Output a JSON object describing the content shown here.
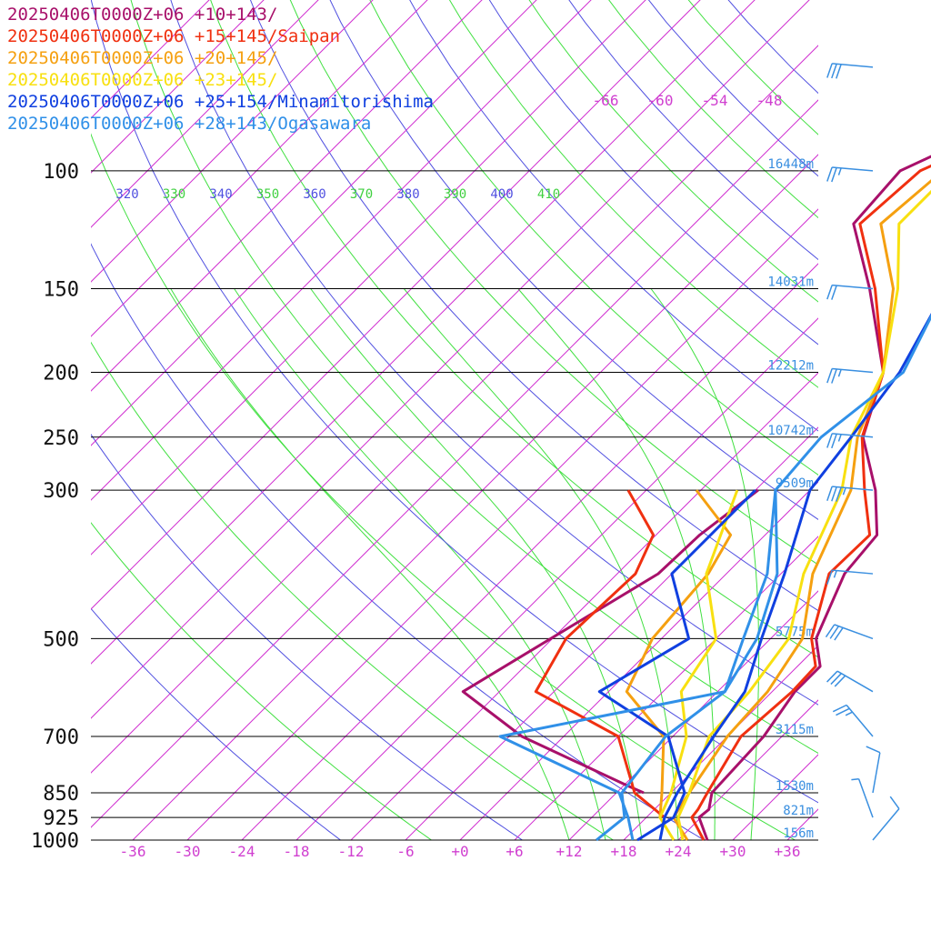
{
  "chart_data": {
    "type": "line",
    "title": "",
    "xlabel": "",
    "ylabel": "",
    "xlim": [
      -40,
      40
    ],
    "pressure_levels": [
      100,
      150,
      200,
      250,
      300,
      500,
      700,
      850,
      925,
      1000
    ],
    "pressure_labels": [
      "100",
      "150",
      "200",
      "250",
      "300",
      "500",
      "700",
      "850",
      "925",
      "1000"
    ],
    "temperature_ticks": [
      -36,
      -30,
      -24,
      -18,
      -12,
      -6,
      0,
      6,
      12,
      18,
      24,
      30,
      36
    ],
    "temperature_tick_labels": [
      "-36",
      "-30",
      "-24",
      "-18",
      "-12",
      "-6",
      "+0",
      "+6",
      "+12",
      "+18",
      "+24",
      "+30",
      "+36"
    ],
    "upper_temperature_labels": [
      "-66",
      "-60",
      "-54",
      "-48"
    ],
    "theta_labels": [
      {
        "text": "320",
        "color": "#5050e0"
      },
      {
        "text": "330",
        "color": "#40d040"
      },
      {
        "text": "340",
        "color": "#5050e0"
      },
      {
        "text": "350",
        "color": "#40d040"
      },
      {
        "text": "360",
        "color": "#5050e0"
      },
      {
        "text": "370",
        "color": "#40d040"
      },
      {
        "text": "380",
        "color": "#5050e0"
      },
      {
        "text": "390",
        "color": "#40d040"
      },
      {
        "text": "400",
        "color": "#5050e0"
      },
      {
        "text": "410",
        "color": "#40d040"
      }
    ],
    "heights": [
      "16448m",
      "14031m",
      "12212m",
      "10742m",
      "9509m",
      "5775m",
      "3115m",
      "1530m",
      "821m",
      "156m"
    ],
    "colors": {
      "isotherm": "#d030d0",
      "isobar": "#000000",
      "dry_adiabat": "#5050e0",
      "moist_adiabat": "#40d040",
      "wind_barb": "#3a8fe0"
    },
    "series": [
      {
        "name": "20250406T0000Z+06 +10+143/",
        "color": "#a8106a",
        "temperature": [
          [
            1000,
            27.2
          ],
          [
            925,
            23.8
          ],
          [
            900,
            24.0
          ],
          [
            850,
            22.5
          ],
          [
            700,
            22.0
          ],
          [
            600,
            20.5
          ],
          [
            550,
            20.5
          ],
          [
            500,
            17.0
          ],
          [
            400,
            13.0
          ],
          [
            350,
            12.3
          ],
          [
            300,
            7.2
          ],
          [
            250,
            0.0
          ],
          [
            200,
            -4.9
          ],
          [
            150,
            -15.6
          ],
          [
            120,
            -24.5
          ],
          [
            100,
            -25.2
          ],
          [
            80,
            -17.0
          ],
          [
            70,
            -9.0
          ],
          [
            60,
            0.0
          ],
          [
            50,
            12.0
          ]
        ],
        "dewpoint": [
          [
            850,
            15.0
          ],
          [
            830,
            12.5
          ],
          [
            700,
            -4.6
          ],
          [
            600,
            -16.0
          ],
          [
            400,
            -7.5
          ],
          [
            350,
            -7.2
          ],
          [
            300,
            -5.7
          ]
        ]
      },
      {
        "name": "20250406T0000Z+06 +15+145/Saipan",
        "color": "#f03010",
        "temperature": [
          [
            1000,
            26.8
          ],
          [
            925,
            23.0
          ],
          [
            900,
            22.8
          ],
          [
            850,
            22.0
          ],
          [
            700,
            19.5
          ],
          [
            600,
            20.2
          ],
          [
            550,
            20.0
          ],
          [
            500,
            16.5
          ],
          [
            400,
            11.3
          ],
          [
            350,
            11.5
          ],
          [
            300,
            6.0
          ],
          [
            250,
            -0.1
          ],
          [
            200,
            -4.9
          ],
          [
            150,
            -15.0
          ],
          [
            120,
            -23.8
          ],
          [
            100,
            -23.0
          ],
          [
            80,
            -14.5
          ],
          [
            60,
            2.0
          ],
          [
            50,
            14.0
          ]
        ],
        "dewpoint": [
          [
            925,
            20.0
          ],
          [
            850,
            14.0
          ],
          [
            700,
            6.0
          ],
          [
            600,
            -8.0
          ],
          [
            500,
            -10.5
          ],
          [
            400,
            -10.0
          ],
          [
            350,
            -12.3
          ],
          [
            300,
            -20.0
          ]
        ]
      },
      {
        "name": "20250406T0000Z+06 +20+145/",
        "color": "#f5a010",
        "temperature": [
          [
            1000,
            25.0
          ],
          [
            925,
            21.0
          ],
          [
            850,
            20.0
          ],
          [
            700,
            18.0
          ],
          [
            600,
            17.5
          ],
          [
            500,
            15.5
          ],
          [
            400,
            9.5
          ],
          [
            300,
            4.5
          ],
          [
            250,
            -0.6
          ],
          [
            200,
            -4.9
          ],
          [
            150,
            -13.0
          ],
          [
            120,
            -21.5
          ],
          [
            100,
            -20.5
          ],
          [
            80,
            -14.0
          ],
          [
            70,
            -7.0
          ],
          [
            60,
            2.0
          ],
          [
            50,
            15.0
          ]
        ],
        "dewpoint": [
          [
            925,
            19.5
          ],
          [
            850,
            17.0
          ],
          [
            700,
            11.0
          ],
          [
            600,
            2.0
          ],
          [
            500,
            -1.0
          ],
          [
            400,
            -2.0
          ],
          [
            350,
            -3.8
          ],
          [
            300,
            -12.5
          ]
        ]
      },
      {
        "name": "20250406T0000Z+06 +23+145/",
        "color": "#f8e010",
        "temperature": [
          [
            1000,
            24.5
          ],
          [
            925,
            21.5
          ],
          [
            850,
            20.0
          ],
          [
            700,
            16.0
          ],
          [
            600,
            15.5
          ],
          [
            500,
            14.0
          ],
          [
            400,
            8.5
          ],
          [
            300,
            3.5
          ],
          [
            250,
            -1.3
          ],
          [
            200,
            -4.9
          ],
          [
            150,
            -12.5
          ],
          [
            120,
            -19.5
          ],
          [
            100,
            -19.5
          ],
          [
            80,
            -15.0
          ],
          [
            70,
            -7.5
          ],
          [
            60,
            0.0
          ],
          [
            50,
            17.0
          ]
        ],
        "dewpoint": [
          [
            1000,
            23.5
          ],
          [
            925,
            19.5
          ],
          [
            850,
            18.0
          ],
          [
            700,
            13.5
          ],
          [
            600,
            8.0
          ],
          [
            500,
            6.0
          ],
          [
            400,
            -2.2
          ],
          [
            300,
            -8.0
          ]
        ]
      },
      {
        "name": "20250406T0000Z+06 +25+154/Minamitorishima",
        "color": "#1040e0",
        "temperature": [
          [
            1000,
            22.0
          ],
          [
            925,
            20.0
          ],
          [
            850,
            18.7
          ],
          [
            700,
            16.5
          ],
          [
            600,
            15.0
          ],
          [
            500,
            11.0
          ],
          [
            400,
            6.4
          ],
          [
            300,
            0.0
          ],
          [
            250,
            -1.3
          ],
          [
            200,
            -3.1
          ],
          [
            150,
            -7.2
          ],
          [
            120,
            -10.7
          ],
          [
            100,
            -8.6
          ],
          [
            80,
            -4.5
          ],
          [
            60,
            5.0
          ],
          [
            50,
            18.0
          ]
        ],
        "dewpoint": [
          [
            1000,
            19.5
          ],
          [
            925,
            21.0
          ],
          [
            850,
            19.5
          ],
          [
            700,
            11.5
          ],
          [
            600,
            -1.0
          ],
          [
            500,
            3.0
          ],
          [
            400,
            -6.0
          ],
          [
            300,
            -6.0
          ]
        ]
      },
      {
        "name": "20250406T0000Z+06 +28+143/Ogasawara",
        "color": "#3090e8",
        "temperature": [
          [
            1000,
            15.0
          ],
          [
            925,
            15.6
          ],
          [
            850,
            12.6
          ],
          [
            700,
            11.2
          ],
          [
            600,
            12.8
          ],
          [
            500,
            10.5
          ],
          [
            400,
            5.6
          ],
          [
            300,
            -3.8
          ],
          [
            250,
            -4.6
          ],
          [
            200,
            -2.7
          ],
          [
            150,
            -7.3
          ],
          [
            120,
            -8.8
          ],
          [
            100,
            -4.0
          ],
          [
            80,
            -4.0
          ],
          [
            70,
            2.0
          ],
          [
            60,
            15.0
          ],
          [
            50,
            28.0
          ]
        ],
        "dewpoint": [
          [
            1000,
            19.0
          ],
          [
            925,
            16.0
          ],
          [
            850,
            12.3
          ],
          [
            700,
            -7.0
          ],
          [
            600,
            12.8
          ],
          [
            500,
            9.0
          ],
          [
            400,
            4.5
          ],
          [
            300,
            -3.8
          ]
        ]
      }
    ],
    "wind_barbs": [
      {
        "pressure": 50,
        "direction": 275,
        "speed": 35
      },
      {
        "pressure": 70,
        "direction": 275,
        "speed": 30
      },
      {
        "pressure": 100,
        "direction": 275,
        "speed": 25
      },
      {
        "pressure": 150,
        "direction": 275,
        "speed": 20
      },
      {
        "pressure": 200,
        "direction": 275,
        "speed": 25
      },
      {
        "pressure": 250,
        "direction": 275,
        "speed": 25
      },
      {
        "pressure": 300,
        "direction": 275,
        "speed": 35
      },
      {
        "pressure": 400,
        "direction": 275,
        "speed": 15
      },
      {
        "pressure": 500,
        "direction": 290,
        "speed": 30
      },
      {
        "pressure": 600,
        "direction": 300,
        "speed": 30
      },
      {
        "pressure": 700,
        "direction": 320,
        "speed": 25
      },
      {
        "pressure": 850,
        "direction": 10,
        "speed": 10
      },
      {
        "pressure": 925,
        "direction": 340,
        "speed": 5
      },
      {
        "pressure": 1000,
        "direction": 40,
        "speed": 10
      }
    ]
  }
}
